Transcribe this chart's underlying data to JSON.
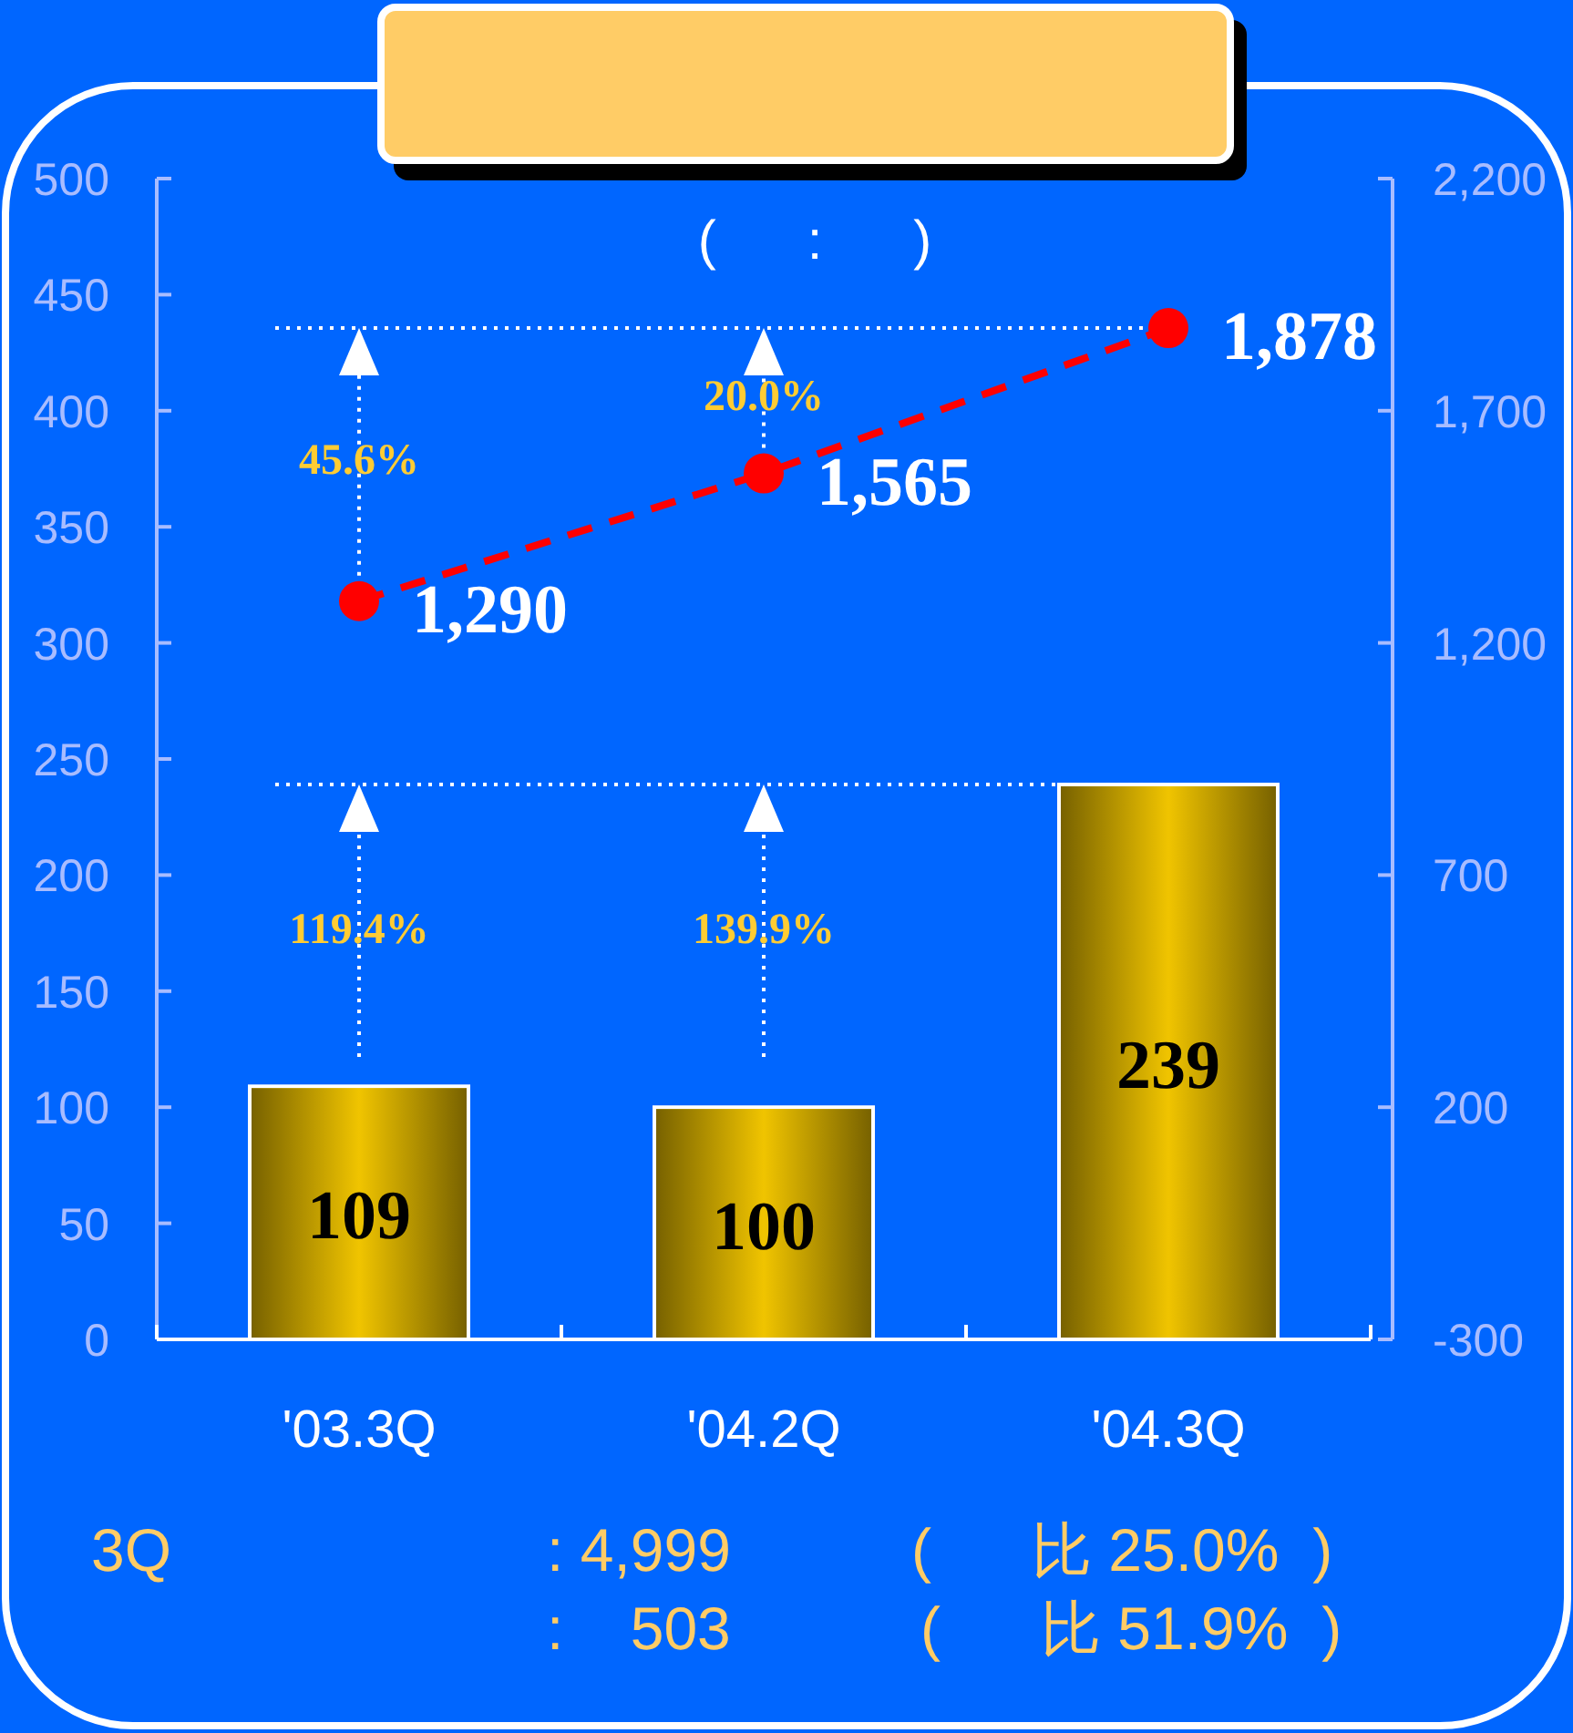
{
  "chart_data": {
    "type": "bar",
    "subtitle": "(      :      )",
    "categories": [
      "'03.3Q",
      "'04.2Q",
      "'04.3Q"
    ],
    "series": [
      {
        "type": "bar",
        "axis": "y",
        "color": "#f0c400",
        "values": [
          109,
          100,
          239
        ],
        "value_labels": [
          "109",
          "100",
          "239"
        ]
      },
      {
        "type": "line",
        "axis": "y2",
        "color": "#ff0000",
        "values": [
          1290,
          1565,
          1878
        ],
        "value_labels": [
          "1,290",
          "1,565",
          "1,878"
        ],
        "marker": "circle",
        "line_style": "dashed"
      }
    ],
    "ylim": [
      0,
      500
    ],
    "yticks": [
      0,
      50,
      100,
      150,
      200,
      250,
      300,
      350,
      400,
      450,
      500
    ],
    "y2lim": [
      -300,
      2200
    ],
    "y2ticks": [
      -300,
      200,
      700,
      {
        "value": 1200,
        "label": "1,200"
      },
      {
        "value": 1700,
        "label": "1,700"
      },
      {
        "value": 2200,
        "label": "2,200"
      }
    ],
    "ref_lines": [
      {
        "axis": "y",
        "value": 239,
        "color": "#ffffff",
        "line_style": "dotted"
      },
      {
        "axis": "y2",
        "value": 1878,
        "color": "#ffffff",
        "line_style": "dotted"
      }
    ],
    "annotations": [
      "45.6%",
      "20.0%",
      "119.4%",
      "139.9%",
      "3Q",
      ": 4,999",
      "(      比 25.0%  )",
      ":    503",
      "(      比 51.9%  )"
    ]
  }
}
